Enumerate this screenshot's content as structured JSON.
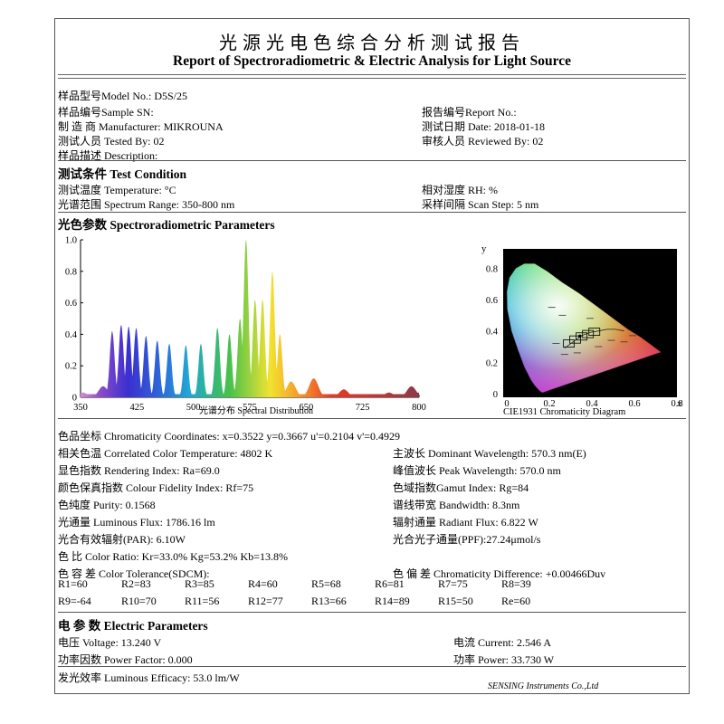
{
  "title_cn": "光源光电色综合分析测试报告",
  "title_en": "Report of Spectroradiometric & Electric Analysis for Light Source",
  "sample": {
    "model": "样品型号Model No.: D5S/25",
    "sn": "样品编号Sample SN:",
    "report_no": "报告编号Report No.:",
    "manufacturer": "制 造 商 Manufacturer: MIKROUNA",
    "test_date": "测试日期 Date: 2018-01-18",
    "tested_by": "测试人员 Tested By: 02",
    "reviewed_by": "审核人员 Reviewed By: 02",
    "description": "样品描述 Description:"
  },
  "test_condition": {
    "heading": "测试条件 Test Condition",
    "temperature": "测试温度 Temperature: °C",
    "humidity": "相对湿度 RH: %",
    "spectrum_range": "光谱范围 Spectrum Range: 350-800 nm",
    "scan_step": "采样间隔 Scan Step: 5 nm"
  },
  "spectro": {
    "heading": "光色参数 Spectroradiometric Parameters",
    "spectrum_caption": "光谱分布 Spectral Distribution",
    "cie_caption": "CIE1931 Chromaticity Diagram",
    "params": [
      "色品坐标 Chromaticity Coordinates: x=0.3522 y=0.3667 u'=0.2104 v'=0.4929",
      "相关色温 Correlated Color Temperature: 4802 K",
      "主波长 Dominant Wavelength: 570.3 nm(E)",
      "显色指数 Rendering Index: Ra=69.0",
      "峰值波长 Peak Wavelength: 570.0 nm",
      "颜色保真指数 Colour Fidelity Index: Rf=75",
      "色域指数Gamut Index: Rg=84",
      "色纯度 Purity: 0.1568",
      "谱线带宽 Bandwidth: 8.3nm",
      "光通量 Luminous Flux: 1786.16 lm",
      "辐射通量 Radiant Flux: 6.822 W",
      "光合有效辐射(PAR): 6.10W",
      "光合光子通量(PPF):27.24μmol/s",
      "色 比 Color Ratio:  Kr=33.0%  Kg=53.2%  Kb=13.8%",
      "色 容 差 Color Tolerance(SDCM):",
      "色 偏 差 Chromaticity Difference: +0.00466Duv"
    ],
    "r_row1": [
      "R1=60",
      "R2=83",
      "R3=85",
      "R4=60",
      "R5=68",
      "R6=81",
      "R7=75",
      "R8=39"
    ],
    "r_row2": [
      "R9=-64",
      "R10=70",
      "R11=56",
      "R12=77",
      "R13=66",
      "R14=89",
      "R15=50",
      "Re=60"
    ]
  },
  "electric": {
    "heading": "电 参 数 Electric Parameters",
    "voltage": "电压 Voltage: 13.240 V",
    "current": "电流 Current: 2.546 A",
    "power_factor": "功率因数 Power Factor: 0.000",
    "power": "功率 Power: 33.730 W",
    "efficacy": "发光效率 Luminous Efficacy: 53.0 lm/W"
  },
  "footer": "SENSING Instruments Co.,Ltd",
  "chart_data": [
    {
      "type": "line",
      "xlabel": "光谱分布 Spectral Distribution",
      "xlim": [
        350,
        800
      ],
      "ylim": [
        0,
        1.0
      ],
      "x_ticks": [
        350,
        425,
        500,
        575,
        650,
        725,
        800
      ],
      "y_ticks": [
        0,
        0.2,
        0.4,
        0.6,
        0.8,
        1.0
      ],
      "x_tick_labels": [
        "350",
        "425",
        "500",
        "575",
        "650",
        "725",
        "800"
      ],
      "y_tick_labels": [
        "0",
        "0.2",
        "0.4",
        "0.6",
        "0.8",
        "1.0"
      ],
      "peaks": [
        {
          "x": 353,
          "y": 0.03
        },
        {
          "x": 380,
          "y": 0.07
        },
        {
          "x": 392,
          "y": 0.42
        },
        {
          "x": 404,
          "y": 0.46
        },
        {
          "x": 414,
          "y": 0.45
        },
        {
          "x": 424,
          "y": 0.44
        },
        {
          "x": 437,
          "y": 0.39
        },
        {
          "x": 452,
          "y": 0.36
        },
        {
          "x": 468,
          "y": 0.34
        },
        {
          "x": 490,
          "y": 0.33
        },
        {
          "x": 510,
          "y": 0.34
        },
        {
          "x": 532,
          "y": 0.44
        },
        {
          "x": 548,
          "y": 0.4
        },
        {
          "x": 562,
          "y": 0.5
        },
        {
          "x": 570,
          "y": 1.0
        },
        {
          "x": 582,
          "y": 0.62
        },
        {
          "x": 592,
          "y": 0.62
        },
        {
          "x": 605,
          "y": 0.8
        },
        {
          "x": 615,
          "y": 0.4
        },
        {
          "x": 630,
          "y": 0.1
        },
        {
          "x": 660,
          "y": 0.12
        },
        {
          "x": 700,
          "y": 0.05
        },
        {
          "x": 760,
          "y": 0.03
        },
        {
          "x": 790,
          "y": 0.07
        },
        {
          "x": 800,
          "y": 0.03
        }
      ]
    },
    {
      "type": "scatter",
      "title": "CIE1931 Chromaticity Diagram",
      "xlabel": "x",
      "ylabel": "y",
      "xlim": [
        0,
        0.8
      ],
      "ylim": [
        0,
        0.9
      ],
      "x_tick_labels": [
        "0",
        "0.2",
        "0.4",
        "0.6",
        "0.8"
      ],
      "y_tick_labels": [
        "0",
        "0.2",
        "0.4",
        "0.6",
        "0.8"
      ],
      "point": {
        "x": 0.3522,
        "y": 0.3667
      }
    }
  ]
}
